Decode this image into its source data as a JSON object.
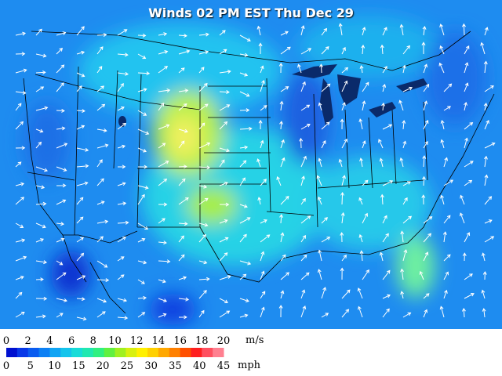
{
  "title": "Winds 02 PM EST Thu Dec 29",
  "legend": {
    "ms_labels": [
      0,
      2,
      4,
      6,
      8,
      10,
      12,
      14,
      16,
      18,
      20
    ],
    "ms_unit": "m/s",
    "mph_labels": [
      0,
      5,
      10,
      15,
      20,
      25,
      30,
      35,
      40,
      45
    ],
    "mph_unit": "mph"
  }
}
